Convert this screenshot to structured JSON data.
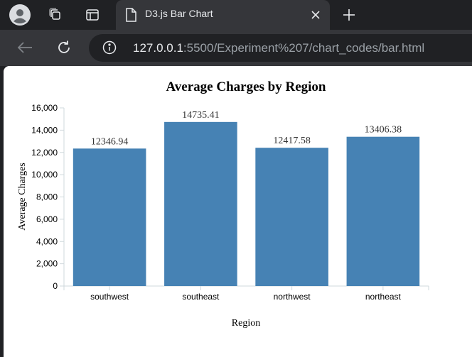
{
  "browser": {
    "tab_title": "D3.js Bar Chart",
    "url_host": "127.0.0.1",
    "url_rest": ":5500/Experiment%207/chart_codes/bar.html",
    "icons": {
      "profile": "profile-icon",
      "workspaces": "workspaces-icon",
      "tab_actions": "tab-actions-icon",
      "page": "page-icon",
      "close": "close-icon",
      "new_tab": "plus-icon",
      "back": "back-arrow-icon",
      "reload": "reload-icon",
      "site_info": "info-icon"
    }
  },
  "chart_data": {
    "type": "bar",
    "title": "Average Charges by Region",
    "xlabel": "Region",
    "ylabel": "Average Charges",
    "categories": [
      "southwest",
      "southeast",
      "northwest",
      "northeast"
    ],
    "values": [
      12346.94,
      14735.41,
      12417.58,
      13406.38
    ],
    "value_labels": [
      "12346.94",
      "14735.41",
      "12417.58",
      "13406.38"
    ],
    "ylim": [
      0,
      16000
    ],
    "yticks": [
      0,
      2000,
      4000,
      6000,
      8000,
      10000,
      12000,
      14000,
      16000
    ],
    "ytick_labels": [
      "0",
      "2,000",
      "4,000",
      "6,000",
      "8,000",
      "10,000",
      "12,000",
      "14,000",
      "16,000"
    ],
    "bar_color": "#4682b4",
    "grid": false,
    "legend": "none"
  }
}
